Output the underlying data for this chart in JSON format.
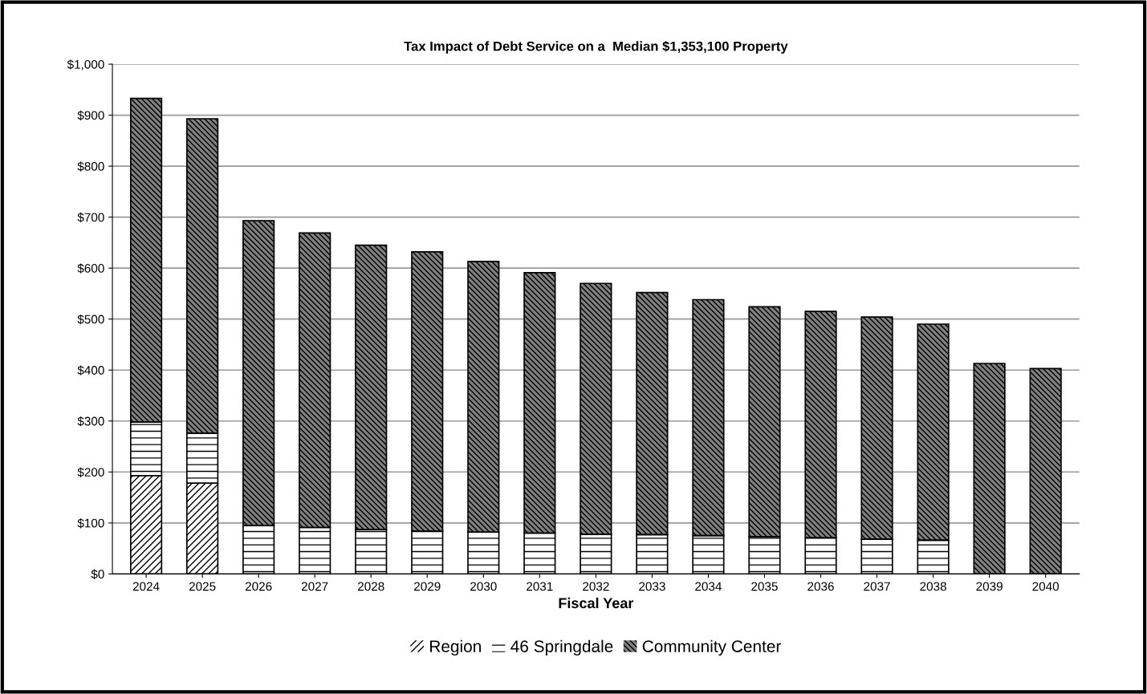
{
  "chart_data": {
    "type": "bar",
    "title": "Tax Impact of Debt Service on a  Median $1,353,100 Property",
    "xlabel": "Fiscal Year",
    "categories": [
      "2024",
      "2025",
      "2026",
      "2027",
      "2028",
      "2029",
      "2030",
      "2031",
      "2032",
      "2033",
      "2034",
      "2035",
      "2036",
      "2037",
      "2038",
      "2039",
      "2040"
    ],
    "stacked": true,
    "series": [
      {
        "name": "Region",
        "color": "#ffffff",
        "values": [
          193,
          178,
          null,
          null,
          null,
          null,
          null,
          null,
          null,
          null,
          null,
          null,
          null,
          null,
          null,
          null,
          null
        ]
      },
      {
        "name": "46 Springdale",
        "color": "#ffffff",
        "values": [
          105,
          98,
          95,
          91,
          87,
          84,
          82,
          80,
          78,
          77,
          75,
          73,
          71,
          68,
          66,
          null,
          null
        ]
      },
      {
        "name": "Community Center",
        "color": "#808080",
        "values": [
          635,
          617,
          598,
          578,
          558,
          548,
          531,
          511,
          492,
          475,
          463,
          451,
          444,
          436,
          424,
          413,
          403
        ]
      }
    ],
    "ylim": [
      0,
      1000
    ],
    "yticks": [
      {
        "value": 0,
        "label": "$0"
      },
      {
        "value": 100,
        "label": "$100"
      },
      {
        "value": 200,
        "label": "$200"
      },
      {
        "value": 300,
        "label": "$300"
      },
      {
        "value": 400,
        "label": "$400"
      },
      {
        "value": 500,
        "label": "$500"
      },
      {
        "value": 600,
        "label": "$600"
      },
      {
        "value": 700,
        "label": "$700"
      },
      {
        "value": 800,
        "label": "$800"
      },
      {
        "value": 900,
        "label": "$900"
      },
      {
        "value": 1000,
        "label": "$1,000"
      }
    ],
    "grid": "y",
    "legend": "bottom"
  }
}
